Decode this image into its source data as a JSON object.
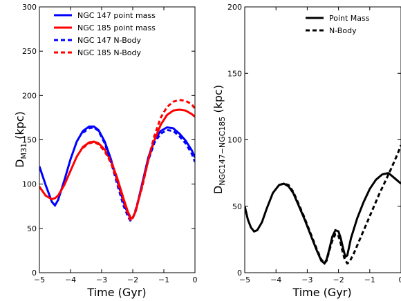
{
  "chart_data": [
    {
      "type": "line",
      "title": "",
      "xlabel": "Time (Gyr)",
      "ylabel_main": "D",
      "ylabel_sub": "M31",
      "ylabel_unit": " (kpc)",
      "xlim": [
        -5,
        0
      ],
      "ylim": [
        0,
        300
      ],
      "xticks": [
        -5,
        -4,
        -3,
        -2,
        -1,
        0
      ],
      "xtick_labels": [
        "−5",
        "−4",
        "−3",
        "−2",
        "−1",
        "0"
      ],
      "yticks": [
        0,
        50,
        100,
        150,
        200,
        250,
        300
      ],
      "ytick_labels": [
        "0",
        "50",
        "100",
        "150",
        "200",
        "250",
        "300"
      ],
      "legend_position": "top-right",
      "series": [
        {
          "name": "NGC 147 point mass",
          "color": "#0000ff",
          "style": "solid",
          "x": [
            -5,
            -4.8,
            -4.6,
            -4.5,
            -4.4,
            -4.2,
            -4.0,
            -3.8,
            -3.6,
            -3.4,
            -3.25,
            -3.1,
            -2.9,
            -2.7,
            -2.5,
            -2.3,
            -2.15,
            -2.05,
            -2.0,
            -1.9,
            -1.7,
            -1.5,
            -1.3,
            -1.1,
            -0.9,
            -0.7,
            -0.5,
            -0.3,
            -0.1,
            0
          ],
          "y": [
            120,
            99,
            80,
            76,
            82,
            104,
            128,
            148,
            160,
            165,
            165,
            161,
            148,
            128,
            104,
            80,
            66,
            61,
            62,
            70,
            100,
            130,
            150,
            160,
            164,
            163,
            157,
            149,
            138,
            130
          ]
        },
        {
          "name": "NGC 185 point mass",
          "color": "#ff0000",
          "style": "solid",
          "x": [
            -5,
            -4.8,
            -4.6,
            -4.5,
            -4.4,
            -4.2,
            -4.0,
            -3.8,
            -3.6,
            -3.4,
            -3.25,
            -3.1,
            -2.9,
            -2.7,
            -2.5,
            -2.3,
            -2.15,
            -2.05,
            -2.0,
            -1.9,
            -1.7,
            -1.5,
            -1.3,
            -1.1,
            -0.9,
            -0.7,
            -0.5,
            -0.3,
            -0.1,
            0
          ],
          "y": [
            97,
            87,
            83,
            84,
            87,
            99,
            115,
            131,
            142,
            147,
            148,
            146,
            139,
            126,
            107,
            84,
            68,
            61,
            62,
            70,
            98,
            127,
            150,
            167,
            178,
            183,
            184,
            183,
            179,
            176
          ]
        },
        {
          "name": "NGC 147  N-Body",
          "color": "#0000ff",
          "style": "dashed",
          "x": [
            -3.6,
            -3.4,
            -3.25,
            -3.1,
            -2.9,
            -2.7,
            -2.5,
            -2.3,
            -2.15,
            -2.08,
            -2.02,
            -1.95,
            -1.7,
            -1.5,
            -1.3,
            -1.1,
            -0.9,
            -0.7,
            -0.5,
            -0.3,
            -0.1,
            0
          ],
          "y": [
            158,
            163,
            164,
            160,
            146,
            125,
            100,
            76,
            63,
            59,
            60,
            66,
            97,
            127,
            147,
            157,
            161,
            160,
            154,
            146,
            134,
            125
          ]
        },
        {
          "name": "NGC 185  N-Body",
          "color": "#ff0000",
          "style": "dashed",
          "x": [
            -3.6,
            -3.4,
            -3.25,
            -3.1,
            -2.9,
            -2.7,
            -2.5,
            -2.3,
            -2.15,
            -2.08,
            -2.02,
            -1.95,
            -1.7,
            -1.5,
            -1.3,
            -1.1,
            -0.9,
            -0.7,
            -0.5,
            -0.3,
            -0.1,
            0
          ],
          "y": [
            141,
            146,
            147,
            145,
            137,
            124,
            104,
            81,
            66,
            60,
            60,
            66,
            96,
            128,
            155,
            175,
            187,
            193,
            195,
            194,
            190,
            185
          ]
        }
      ]
    },
    {
      "type": "line",
      "title": "",
      "xlabel": "Time (Gyr)",
      "ylabel_main": "D",
      "ylabel_sub": "NGC147−NGC185",
      "ylabel_unit": " (kpc)",
      "xlim": [
        -5,
        0
      ],
      "ylim": [
        0,
        200
      ],
      "xticks": [
        -5,
        -4,
        -3,
        -2,
        -1,
        0
      ],
      "xtick_labels": [
        "−5",
        "−4",
        "−3",
        "−2",
        "−1",
        "0"
      ],
      "yticks": [
        0,
        50,
        100,
        150,
        200
      ],
      "ytick_labels": [
        "0",
        "50",
        "100",
        "150",
        "200"
      ],
      "legend_position": "top-right",
      "series": [
        {
          "name": "Point Mass",
          "color": "#000000",
          "style": "solid",
          "x": [
            -5,
            -4.9,
            -4.8,
            -4.7,
            -4.6,
            -4.45,
            -4.3,
            -4.1,
            -3.9,
            -3.75,
            -3.6,
            -3.45,
            -3.3,
            -3.1,
            -2.9,
            -2.7,
            -2.55,
            -2.45,
            -2.38,
            -2.3,
            -2.2,
            -2.1,
            -2.0,
            -1.93,
            -1.85,
            -1.78,
            -1.72,
            -1.6,
            -1.4,
            -1.2,
            -1.0,
            -0.8,
            -0.6,
            -0.4,
            -0.2,
            0
          ],
          "y": [
            50,
            40,
            34,
            31,
            32,
            38,
            48,
            60,
            66,
            67,
            65,
            60,
            52,
            41,
            29,
            17,
            9,
            7,
            10,
            17,
            27,
            32,
            31,
            26,
            18,
            12,
            13,
            26,
            41,
            53,
            63,
            70,
            74,
            75,
            71,
            67
          ]
        },
        {
          "name": "N-Body",
          "color": "#000000",
          "style": "dashed",
          "x": [
            -3.9,
            -3.75,
            -3.6,
            -3.45,
            -3.3,
            -3.1,
            -2.9,
            -2.7,
            -2.55,
            -2.45,
            -2.38,
            -2.3,
            -2.2,
            -2.1,
            -2.02,
            -1.95,
            -1.88,
            -1.8,
            -1.72,
            -1.65,
            -1.5,
            -1.3,
            -1.1,
            -0.9,
            -0.7,
            -0.5,
            -0.3,
            -0.1,
            0
          ],
          "y": [
            66,
            67,
            66,
            61,
            53,
            42,
            30,
            18,
            10,
            7,
            9,
            16,
            24,
            29,
            29,
            24,
            17,
            10,
            7,
            8,
            15,
            26,
            37,
            48,
            59,
            69,
            79,
            90,
            96
          ]
        }
      ]
    }
  ]
}
